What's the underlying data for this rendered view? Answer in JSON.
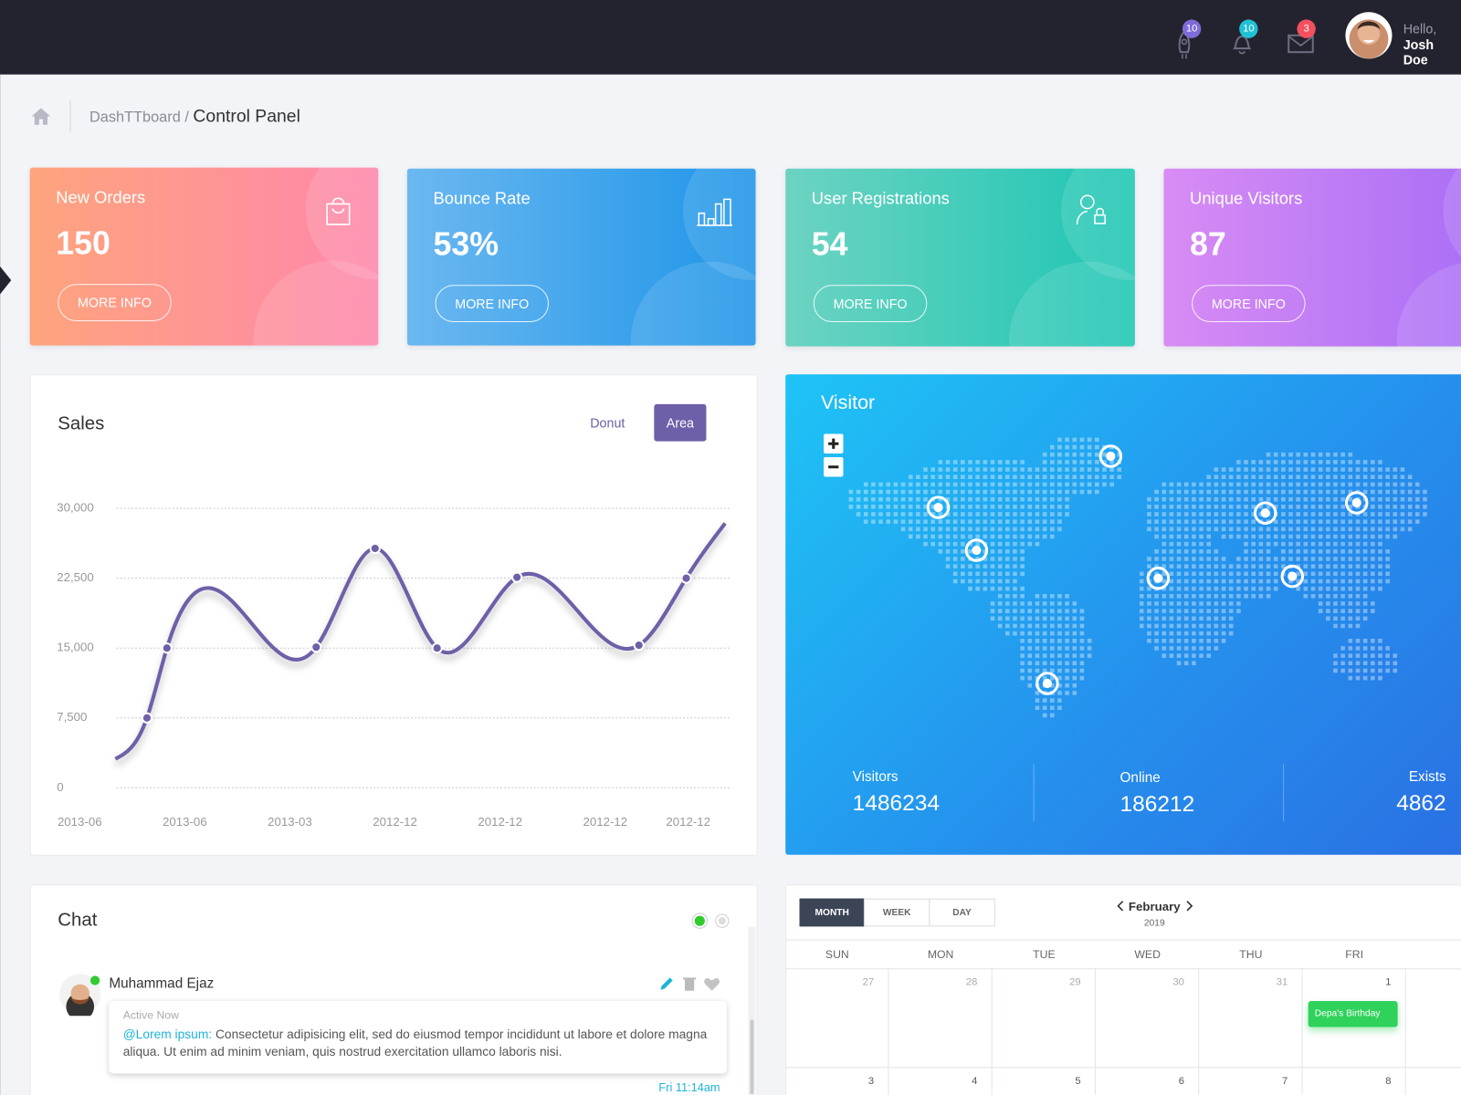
{
  "topbar": {
    "badges": [
      10,
      10,
      3
    ],
    "greeting": "Hello,",
    "user": "Josh Doe"
  },
  "breadcrumb": {
    "parent": "DashTTboard",
    "separator": "/",
    "current": "Control Panel"
  },
  "cards": [
    {
      "title": "New Orders",
      "value": "150",
      "button": "MORE INFO"
    },
    {
      "title": "Bounce Rate",
      "value": "53%",
      "button": "MORE INFO"
    },
    {
      "title": "User Registrations",
      "value": "54",
      "button": "MORE INFO"
    },
    {
      "title": "Unique Visitors",
      "value": "87",
      "button": "MORE INFO"
    }
  ],
  "sales_panel": {
    "tabs": [
      "Donut",
      "Area"
    ]
  },
  "chart_data": {
    "type": "line",
    "title": "Sales",
    "x": [
      0.34,
      0.64,
      0.83,
      2.25,
      2.81,
      3.4,
      4.16,
      5.32,
      5.77,
      6.14
    ],
    "values": [
      3100,
      7500,
      15000,
      15100,
      25700,
      15000,
      22600,
      15300,
      22500,
      28400
    ],
    "color": "#6f5fa8",
    "xlim": [
      0.35,
      6.2
    ],
    "xticks": [
      {
        "value": 0,
        "label": "2013-06"
      },
      {
        "value": 1,
        "label": "2013-06"
      },
      {
        "value": 2,
        "label": "2013-03"
      },
      {
        "value": 3,
        "label": "2012-12"
      },
      {
        "value": 4,
        "label": "2012-12"
      },
      {
        "value": 5,
        "label": "2012-12"
      },
      {
        "value": 6,
        "label": "2012-12"
      }
    ],
    "ylim": [
      0,
      30000
    ],
    "yticks": [
      0,
      {
        "value": 7500,
        "label": "7,500"
      },
      {
        "value": 15000,
        "label": "15,000"
      },
      {
        "value": 22500,
        "label": "22,500"
      },
      {
        "value": 30000,
        "label": "30,000"
      }
    ],
    "grid": true
  },
  "visitor": {
    "title": "Visitor",
    "stats": [
      {
        "label": "Visitors",
        "value": 1486234
      },
      {
        "label": "Online",
        "value": 186212
      },
      {
        "label": "Exists",
        "value": 4862
      }
    ]
  },
  "chat": {
    "title": "Chat",
    "name": "Muhammad Ejaz",
    "status": "Active Now",
    "mention": "@Lorem ipsum:",
    "message": "Consectetur adipisicing elit, sed do eiusmod tempor incididunt ut labore et dolore magna aliqua. Ut enim ad minim veniam, quis nostrud exercitation ullamco laboris nisi.",
    "time": "Fri 11:14am"
  },
  "calendar": {
    "views": [
      "MONTH",
      "WEEK",
      "DAY"
    ],
    "month": "February",
    "year": "2019",
    "days": [
      "SUN",
      "MON",
      "TUE",
      "WED",
      "THU",
      "FRI"
    ],
    "weeks": [
      [
        27,
        28,
        29,
        30,
        31,
        1
      ],
      [
        3,
        4,
        5,
        6,
        7,
        8
      ]
    ],
    "event": "Depa's Birthday"
  }
}
